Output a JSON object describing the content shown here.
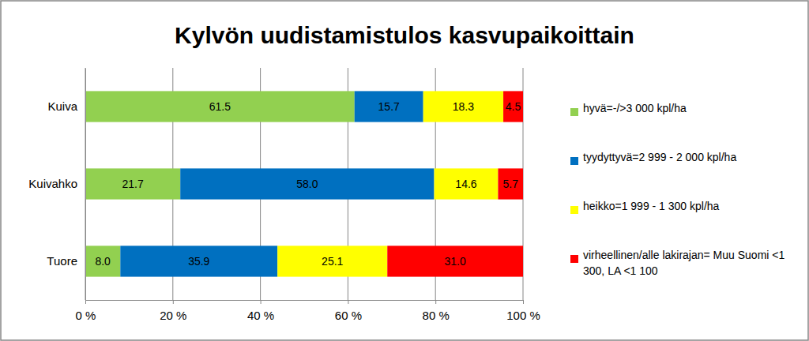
{
  "chart_data": {
    "type": "bar",
    "orientation": "horizontal",
    "stacked": true,
    "title": "Kylvön uudistamistulos kasvupaikoittain",
    "categories": [
      "Kuiva",
      "Kuivahko",
      "Tuore"
    ],
    "series": [
      {
        "name": "hyvä=-/>3 000 kpl/ha",
        "color": "#92d050",
        "values": [
          61.5,
          21.7,
          8.0
        ],
        "value_labels": [
          "61.5",
          "21.7",
          "8.0"
        ]
      },
      {
        "name": "tyydyttyvä=2 999 - 2 000 kpl/ha",
        "color": "#0070c0",
        "values": [
          15.7,
          58.0,
          35.9
        ],
        "value_labels": [
          "15.7",
          "58.0",
          "35.9"
        ]
      },
      {
        "name": "heikko=1 999 - 1 300 kpl/ha",
        "color": "#ffff00",
        "values": [
          18.3,
          14.6,
          25.1
        ],
        "value_labels": [
          "18.3",
          "14.6",
          "25.1"
        ]
      },
      {
        "name": "virheellinen/alle lakirajan= Muu Suomi <1 300, LA <1 100",
        "color": "#ff0000",
        "values": [
          4.5,
          5.7,
          31.0
        ],
        "value_labels": [
          "4.5",
          "5.7",
          "31.0"
        ]
      }
    ],
    "xlim": [
      0,
      100
    ],
    "xticks": [
      {
        "value": 0,
        "label": "0 %"
      },
      {
        "value": 20,
        "label": "20 %"
      },
      {
        "value": 40,
        "label": "40 %"
      },
      {
        "value": 60,
        "label": "60 %"
      },
      {
        "value": 80,
        "label": "80 %"
      },
      {
        "value": 100,
        "label": "100 %"
      }
    ],
    "grid": true,
    "legend": "right",
    "data_labels": true
  }
}
